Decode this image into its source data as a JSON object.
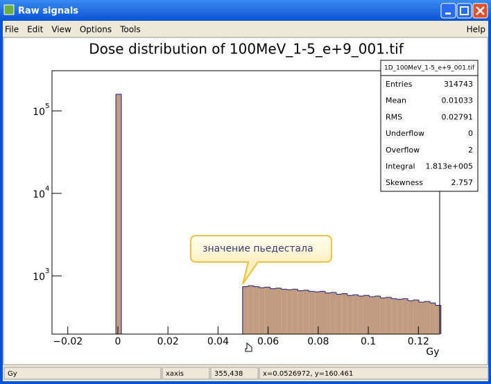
{
  "window": {
    "title": "Raw signals"
  },
  "menu": {
    "items": [
      "File",
      "Edit",
      "View",
      "Options",
      "Tools"
    ],
    "help": "Help"
  },
  "chart_data": {
    "type": "histogram",
    "title": "Dose distribution of 100MeV_1-5_e+9_001.tif",
    "x_label": "Gy",
    "bins": [
      -0.0008,
      0.0014,
      0.0036,
      0.0058,
      0.008,
      0.0102,
      0.0124,
      0.0146,
      0.0168,
      0.019,
      0.0212,
      0.0234,
      0.0256,
      0.0278,
      0.03,
      0.0322,
      0.0344,
      0.0366,
      0.0388,
      0.041,
      0.0432,
      0.0454,
      0.0476,
      0.0498,
      0.052,
      0.0542,
      0.0564,
      0.0586,
      0.0608,
      0.063,
      0.0652,
      0.0674,
      0.0696,
      0.0718,
      0.074,
      0.0762,
      0.0784,
      0.0806,
      0.0828,
      0.085,
      0.0872,
      0.0894,
      0.0916,
      0.0938,
      0.096,
      0.0982,
      0.1004,
      0.1026,
      0.1048,
      0.107,
      0.1092,
      0.1114,
      0.1136,
      0.1158,
      0.118,
      0.1202,
      0.1224,
      0.1246,
      0.1268,
      0.129
    ],
    "values": [
      159000,
      0,
      0,
      0,
      0,
      0,
      0,
      0,
      0,
      0,
      0,
      0,
      0,
      0,
      0,
      0,
      0,
      0,
      0,
      0,
      0,
      0,
      0,
      740,
      760,
      740,
      720,
      730,
      700,
      710,
      690,
      680,
      690,
      660,
      670,
      650,
      640,
      650,
      620,
      630,
      600,
      610,
      580,
      590,
      570,
      580,
      560,
      570,
      540,
      550,
      530,
      520,
      530,
      500,
      510,
      480,
      490,
      470,
      440
    ],
    "color": "#c29c80",
    "edge_color": "#1a1a7a",
    "log_y": true,
    "xlim": [
      -0.0263,
      0.1285
    ],
    "ylim": [
      197,
      307000
    ],
    "xticks": [
      {
        "value": -0.02,
        "label": "−0.02"
      },
      0,
      0.02,
      0.04,
      0.06,
      0.08,
      0.1,
      0.12
    ],
    "yticks": [
      {
        "value": 1000,
        "label": "10",
        "exponent": "3"
      },
      {
        "value": 10000,
        "label": "10",
        "exponent": "4"
      },
      {
        "value": 100000,
        "label": "10",
        "exponent": "5"
      }
    ],
    "annotation": "значение пьедестала"
  },
  "stats": {
    "title": "1D_100MeV_1-5_e+9_001.tif",
    "rows": [
      [
        "Entries",
        "314743"
      ],
      [
        "Mean",
        "0.01033"
      ],
      [
        "RMS",
        "0.02791"
      ],
      [
        "Underflow",
        "0"
      ],
      [
        "Overflow",
        "2"
      ],
      [
        "Integral",
        "1.813e+005"
      ],
      [
        "Skewness",
        "2.757"
      ]
    ]
  },
  "status": [
    "Gy",
    "xaxis",
    "355,438",
    "x=0.0526972, y=160.461"
  ]
}
